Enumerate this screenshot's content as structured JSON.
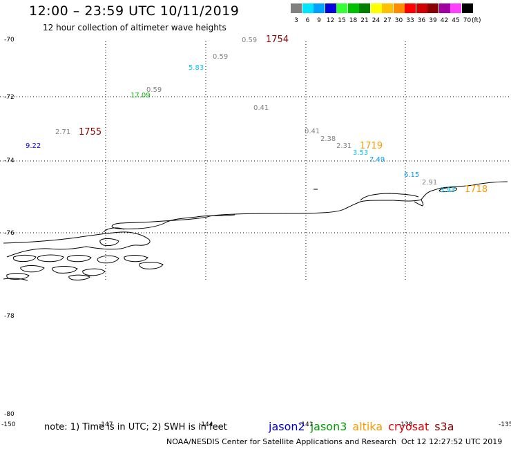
{
  "header": {
    "title": "12:00 – 23:59 UTC 10/11/2019",
    "subtitle": "12 hour collection of altimeter wave heights"
  },
  "legend": {
    "unit": "(ft)",
    "items": [
      {
        "label": "3",
        "color": "#808080"
      },
      {
        "label": "6",
        "color": "#00e5ff"
      },
      {
        "label": "9",
        "color": "#00a0ff"
      },
      {
        "label": "12",
        "color": "#0000e0"
      },
      {
        "label": "15",
        "color": "#33ff33"
      },
      {
        "label": "18",
        "color": "#00c000"
      },
      {
        "label": "21",
        "color": "#008000"
      },
      {
        "label": "24",
        "color": "#ffff00"
      },
      {
        "label": "27",
        "color": "#ffc000"
      },
      {
        "label": "30",
        "color": "#ff8c00"
      },
      {
        "label": "33",
        "color": "#ff0000"
      },
      {
        "label": "36",
        "color": "#d00000"
      },
      {
        "label": "39",
        "color": "#8b0000"
      },
      {
        "label": "42",
        "color": "#a000a0"
      },
      {
        "label": "45",
        "color": "#ff40ff"
      },
      {
        "label": "70",
        "color": "#000000"
      }
    ]
  },
  "axes": {
    "lat_labels": [
      "-70",
      "-72",
      "-74",
      "-76",
      "-78",
      "-80"
    ],
    "lon_labels": [
      "-150",
      "-147",
      "-144",
      "-141",
      "-138",
      "-135"
    ]
  },
  "readings": [
    {
      "text": "0.59",
      "color": "#808080"
    },
    {
      "text": "0.59",
      "color": "#808080"
    },
    {
      "text": "5.83",
      "color": "#00c8ff"
    },
    {
      "text": "0.59",
      "color": "#808080"
    },
    {
      "text": "17.09",
      "color": "#00b000"
    },
    {
      "text": "0.41",
      "color": "#808080"
    },
    {
      "text": "2.71",
      "color": "#808080"
    },
    {
      "text": "9.22",
      "color": "#0000e0"
    },
    {
      "text": "0.41",
      "color": "#808080"
    },
    {
      "text": "2.38",
      "color": "#808080"
    },
    {
      "text": "2.31",
      "color": "#808080"
    },
    {
      "text": "3.53",
      "color": "#00c8ff"
    },
    {
      "text": "7.49",
      "color": "#00a0ff"
    },
    {
      "text": "6.15",
      "color": "#00a0ff"
    },
    {
      "text": "2.91",
      "color": "#808080"
    },
    {
      "text": "3.93",
      "color": "#00c8ff"
    }
  ],
  "times": [
    {
      "text": "1754",
      "color": "#8b0000"
    },
    {
      "text": "1755",
      "color": "#8b0000"
    },
    {
      "text": "1719",
      "color": "#ff9900"
    },
    {
      "text": "1718",
      "color": "#ff9900"
    }
  ],
  "footer": {
    "note": "note: 1) Time is in UTC; 2) SWH is in feet",
    "satellites": [
      {
        "name": "jason2",
        "color": "#0000cc"
      },
      {
        "name": "jason3",
        "color": "#00a000"
      },
      {
        "name": "altika",
        "color": "#ff9900"
      },
      {
        "name": "cryosat",
        "color": "#dd0000"
      },
      {
        "name": "s3a",
        "color": "#8b0000"
      }
    ],
    "credit": "NOAA/NESDIS Center for Satellite Applications and Research",
    "timestamp": "Oct 12 12:27:52 UTC 2019"
  }
}
